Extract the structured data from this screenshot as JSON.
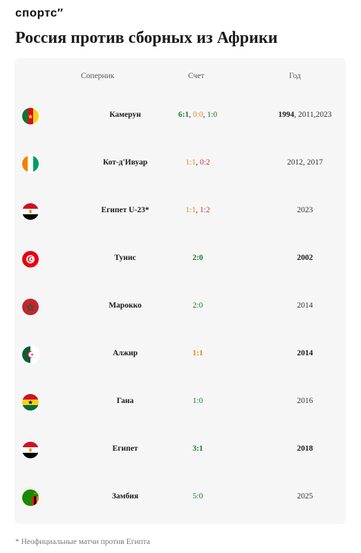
{
  "brand": {
    "logo": "спортс"
  },
  "page": {
    "title": "Россия против сборных из Африки"
  },
  "table": {
    "headers": {
      "opponent": "Соперник",
      "score": "Счет",
      "year": "Год"
    },
    "rows": [
      {
        "opponent": "Камерун",
        "flag_icon": "cameroon-flag-icon",
        "scores": [
          {
            "text": "6:1",
            "result": "win",
            "bold": true
          },
          {
            "text": "0:0",
            "result": "draw",
            "bold": false
          },
          {
            "text": "1:0",
            "result": "win",
            "bold": false
          }
        ],
        "years": [
          {
            "text": "1994",
            "bold": true
          },
          {
            "text": "2011,2023",
            "bold": false
          }
        ]
      },
      {
        "opponent": "Кот-д'Ивуар",
        "flag_icon": "ivory-coast-flag-icon",
        "scores": [
          {
            "text": "1:1",
            "result": "draw",
            "bold": false
          },
          {
            "text": "0:2",
            "result": "loss",
            "bold": false
          }
        ],
        "years": [
          {
            "text": "2012, 2017",
            "bold": false
          }
        ]
      },
      {
        "opponent": "Египет U-23*",
        "flag_icon": "egypt-flag-icon",
        "scores": [
          {
            "text": "1:1",
            "result": "draw",
            "bold": false
          },
          {
            "text": "1:2",
            "result": "loss",
            "bold": false
          }
        ],
        "years": [
          {
            "text": "2023",
            "bold": false
          }
        ]
      },
      {
        "opponent": "Тунис",
        "flag_icon": "tunisia-flag-icon",
        "scores": [
          {
            "text": "2:0",
            "result": "win",
            "bold": true
          }
        ],
        "years": [
          {
            "text": "2002",
            "bold": true
          }
        ]
      },
      {
        "opponent": "Марокко",
        "flag_icon": "morocco-flag-icon",
        "scores": [
          {
            "text": "2:0",
            "result": "win",
            "bold": false
          }
        ],
        "years": [
          {
            "text": "2014",
            "bold": false
          }
        ]
      },
      {
        "opponent": "Алжир",
        "flag_icon": "algeria-flag-icon",
        "scores": [
          {
            "text": "1:1",
            "result": "draw",
            "bold": true
          }
        ],
        "years": [
          {
            "text": "2014",
            "bold": true
          }
        ]
      },
      {
        "opponent": "Гана",
        "flag_icon": "ghana-flag-icon",
        "scores": [
          {
            "text": "1:0",
            "result": "win",
            "bold": false
          }
        ],
        "years": [
          {
            "text": "2016",
            "bold": false
          }
        ]
      },
      {
        "opponent": "Египет",
        "flag_icon": "egypt-flag-icon",
        "scores": [
          {
            "text": "3:1",
            "result": "win",
            "bold": true
          }
        ],
        "years": [
          {
            "text": "2018",
            "bold": true
          }
        ]
      },
      {
        "opponent": "Замбия",
        "flag_icon": "zambia-flag-icon",
        "scores": [
          {
            "text": "5:0",
            "result": "win",
            "bold": false
          }
        ],
        "years": [
          {
            "text": "2025",
            "bold": false
          }
        ]
      }
    ]
  },
  "colors": {
    "win": "#1b7a2b",
    "draw": "#e08a1e",
    "loss": "#d32f2f"
  },
  "footnote": "* Неофициальные матчи против Египта"
}
